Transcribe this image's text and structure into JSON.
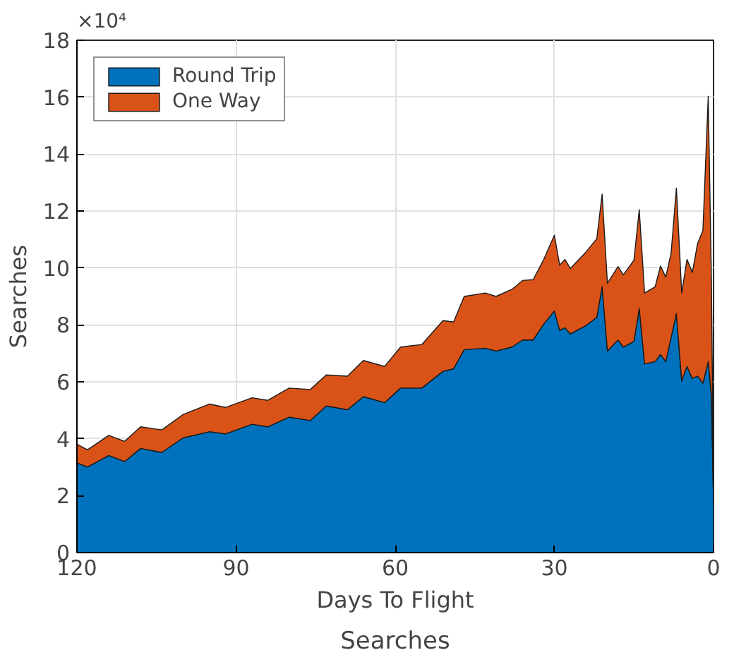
{
  "chart_data": {
    "type": "area",
    "stacked": true,
    "title": "Searches",
    "xlabel": "Days To Flight",
    "ylabel": "Searches",
    "annotations": [
      "×10⁴"
    ],
    "x": [
      120,
      118,
      114,
      111,
      108,
      104,
      100,
      95,
      92,
      87,
      84,
      80,
      76,
      73,
      69,
      66,
      62,
      59,
      55,
      51,
      49,
      47,
      43,
      41,
      38,
      36,
      34,
      32,
      30,
      29,
      28,
      27,
      24,
      22,
      21,
      20,
      18,
      17,
      15,
      14,
      13,
      11,
      10,
      9,
      8,
      7,
      6,
      5,
      4,
      3,
      2,
      1,
      0.4,
      0
    ],
    "series": [
      {
        "name": "Round Trip",
        "color": "#0072bd",
        "values": [
          3.15,
          3.01,
          3.41,
          3.2,
          3.66,
          3.52,
          4.03,
          4.25,
          4.17,
          4.51,
          4.42,
          4.76,
          4.64,
          5.15,
          5.02,
          5.48,
          5.27,
          5.78,
          5.78,
          6.37,
          6.46,
          7.13,
          7.18,
          7.08,
          7.22,
          7.47,
          7.47,
          8.03,
          8.49,
          7.81,
          7.9,
          7.68,
          7.98,
          8.27,
          9.34,
          7.08,
          7.47,
          7.22,
          7.42,
          8.58,
          6.63,
          6.71,
          6.96,
          6.71,
          7.56,
          8.4,
          6.03,
          6.54,
          6.12,
          6.2,
          5.95,
          6.71,
          5.53,
          1.8
        ]
      },
      {
        "name": "One Way",
        "color": "#d95319",
        "values": [
          0.66,
          0.6,
          0.71,
          0.71,
          0.76,
          0.79,
          0.82,
          0.97,
          0.93,
          0.93,
          0.93,
          1.02,
          1.09,
          1.09,
          1.18,
          1.27,
          1.27,
          1.44,
          1.53,
          1.78,
          1.64,
          1.87,
          1.94,
          1.92,
          2.03,
          2.09,
          2.12,
          2.27,
          2.66,
          2.29,
          2.4,
          2.3,
          2.59,
          2.76,
          3.25,
          2.38,
          2.58,
          2.54,
          2.85,
          3.47,
          2.49,
          2.63,
          3.11,
          2.97,
          2.96,
          4.41,
          3.09,
          3.76,
          3.72,
          4.66,
          5.37,
          9.32,
          4.06,
          0.34
        ]
      }
    ],
    "xlim": [
      120,
      0
    ],
    "xticks": [
      120,
      90,
      60,
      30,
      0
    ],
    "ylim": [
      0,
      18
    ],
    "yticks": [
      0,
      2,
      4,
      6,
      8,
      10,
      12,
      14,
      16,
      18
    ],
    "grid": true,
    "legend": "top left"
  }
}
